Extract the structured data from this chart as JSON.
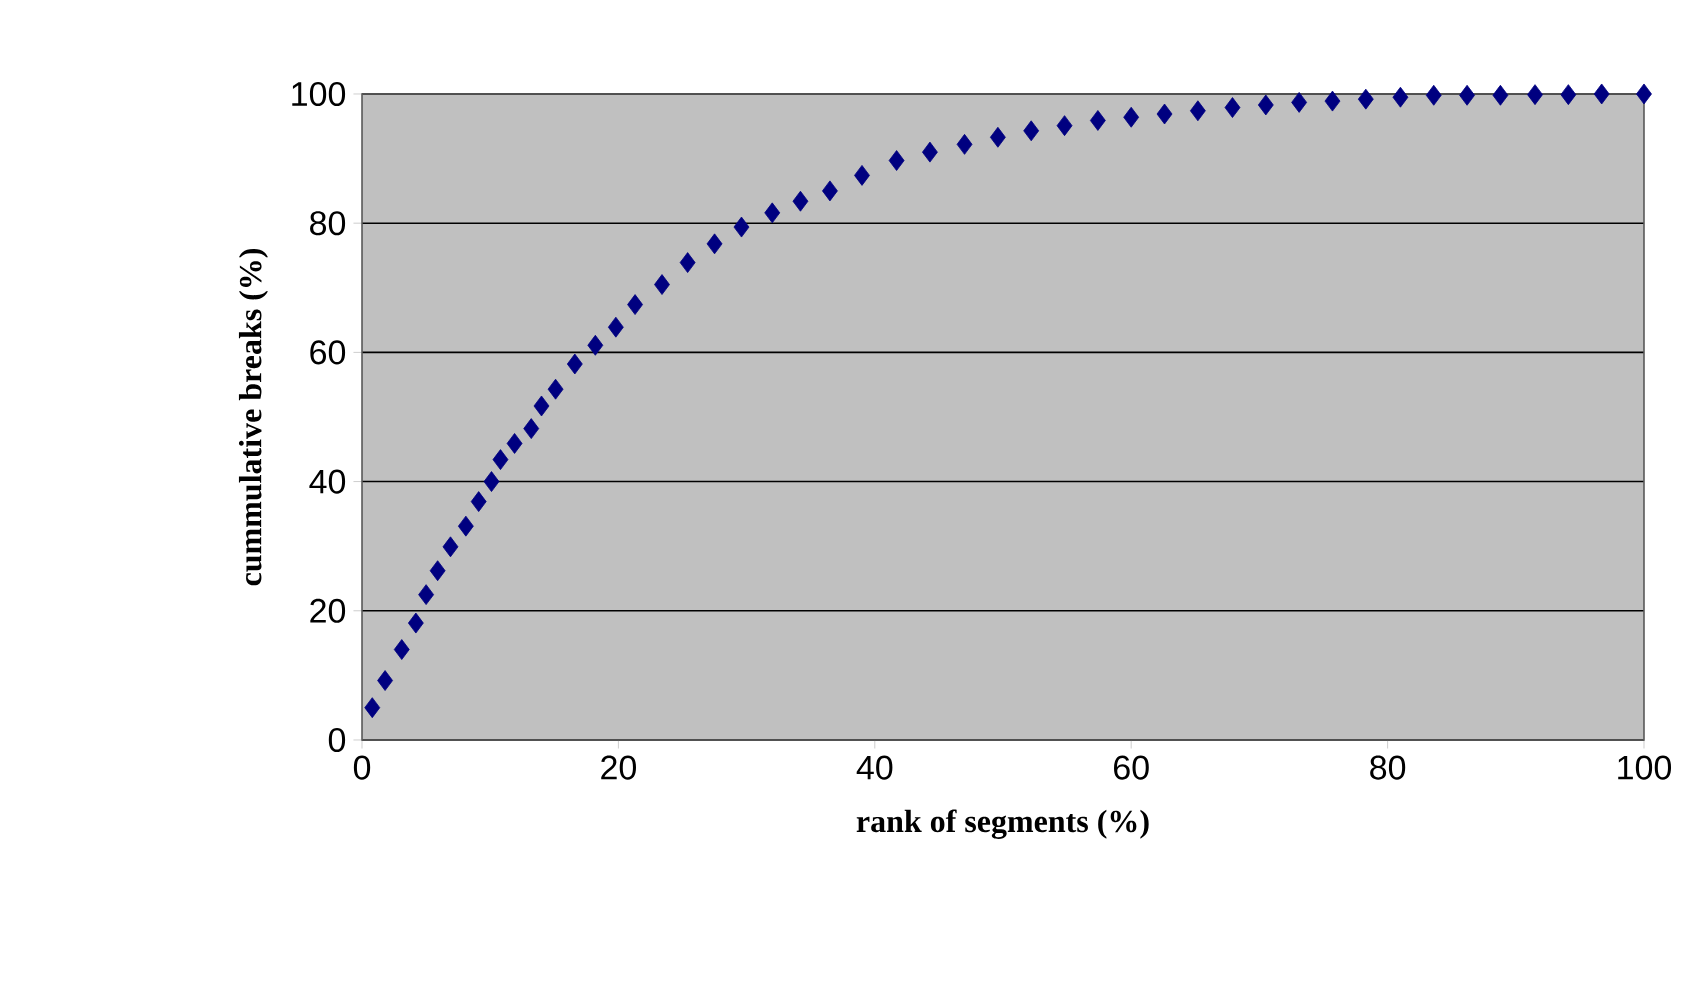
{
  "chart_data": {
    "type": "scatter",
    "xlabel": "rank of segments (%)",
    "ylabel": "cummulative breaks (%)",
    "x": [
      0.8,
      1.8,
      3.1,
      4.2,
      5.0,
      5.9,
      6.9,
      8.1,
      9.1,
      10.1,
      10.8,
      11.9,
      13.2,
      14.0,
      15.1,
      16.6,
      18.2,
      19.8,
      21.3,
      23.4,
      25.4,
      27.5,
      29.6,
      32.0,
      34.2,
      36.5,
      39.0,
      41.7,
      44.3,
      47.0,
      49.6,
      52.2,
      54.8,
      57.4,
      60.0,
      62.6,
      65.2,
      67.9,
      70.5,
      73.1,
      75.7,
      78.3,
      81.0,
      83.6,
      86.2,
      88.8,
      91.5,
      94.1,
      96.7,
      100
    ],
    "series": [
      {
        "color": "#000080",
        "values": [
          5.0,
          9.2,
          14.0,
          18.1,
          22.5,
          26.2,
          29.9,
          33.1,
          36.9,
          40.0,
          43.4,
          45.9,
          48.2,
          51.7,
          54.3,
          58.2,
          61.1,
          63.9,
          67.4,
          70.5,
          73.9,
          76.8,
          79.4,
          81.6,
          83.4,
          85.0,
          87.4,
          89.7,
          91.0,
          92.2,
          93.3,
          94.3,
          95.1,
          95.9,
          96.4,
          96.9,
          97.4,
          97.9,
          98.3,
          98.7,
          98.9,
          99.2,
          99.5,
          99.8,
          99.8,
          99.8,
          99.9,
          99.9,
          100,
          100
        ]
      }
    ],
    "xlim": [
      0,
      100
    ],
    "ylim": [
      0,
      100
    ],
    "xticks": [
      0,
      20,
      40,
      60,
      80,
      100
    ],
    "yticks": [
      0,
      20,
      40,
      60,
      80,
      100
    ],
    "grid": "y",
    "marker": "diamond"
  }
}
